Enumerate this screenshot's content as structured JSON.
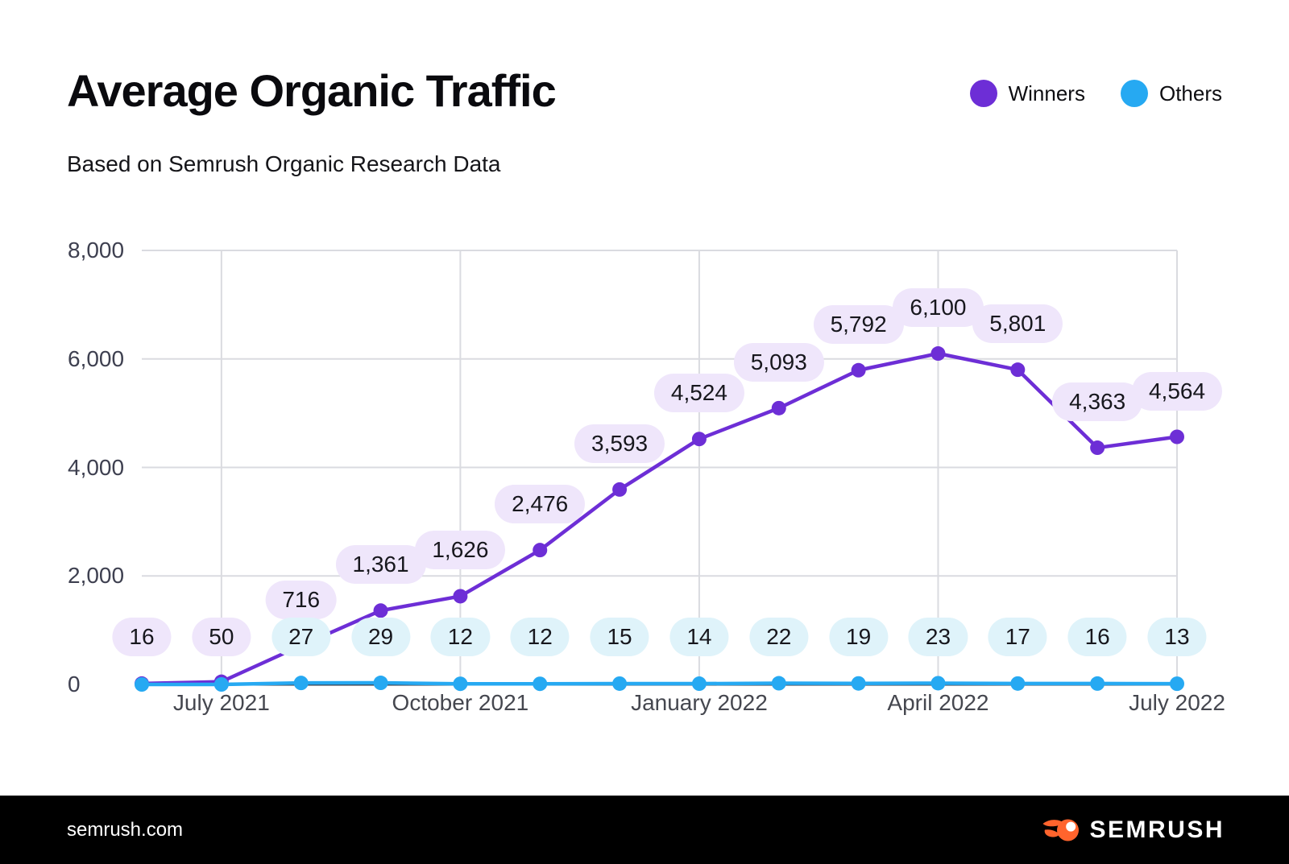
{
  "header": {
    "note": ""
  },
  "chart_data": {
    "type": "line",
    "title": "Average Organic Traffic",
    "subtitle": "Based on Semrush Organic Research Data",
    "xlabel": "",
    "ylabel": "",
    "ylim": [
      0,
      8000
    ],
    "grid": true,
    "legend_position": "top-right",
    "y_ticks": [
      0,
      2000,
      4000,
      6000,
      8000
    ],
    "y_tick_labels": [
      "0",
      "2,000",
      "4,000",
      "6,000",
      "8,000"
    ],
    "x_tick_labels": [
      "July 2021",
      "October 2021",
      "January 2022",
      "April 2022",
      "July 2022"
    ],
    "x_tick_point_indices": [
      1,
      4,
      7,
      10,
      13
    ],
    "series": [
      {
        "name": "Winners",
        "color": "#6d2ed6",
        "label_bg": "#efe6fb",
        "values": [
          16,
          50,
          716,
          1361,
          1626,
          2476,
          3593,
          4524,
          5093,
          5792,
          6100,
          5801,
          4363,
          4564
        ],
        "labels": [
          "16",
          "50",
          "716",
          "1,361",
          "1,626",
          "2,476",
          "3,593",
          "4,524",
          "5,093",
          "5,792",
          "6,100",
          "5,801",
          "4,363",
          "4,564"
        ]
      },
      {
        "name": "Others",
        "color": "#26a9f2",
        "label_bg": "#dff3fa",
        "values": [
          null,
          null,
          27,
          29,
          12,
          12,
          15,
          14,
          22,
          19,
          23,
          17,
          16,
          13
        ],
        "labels": [
          null,
          null,
          "27",
          "29",
          "12",
          "12",
          "15",
          "14",
          "22",
          "19",
          "23",
          "17",
          "16",
          "13"
        ]
      }
    ],
    "colors": {
      "gridline": "#dadbe0",
      "axis_line": "#34353f",
      "tick_text": "#45474f",
      "pill_text": "#17171d"
    }
  },
  "footer": {
    "site": "semrush.com",
    "brand": "SEMRUSH",
    "brand_color": "#ff642d",
    "background": "#000000"
  }
}
